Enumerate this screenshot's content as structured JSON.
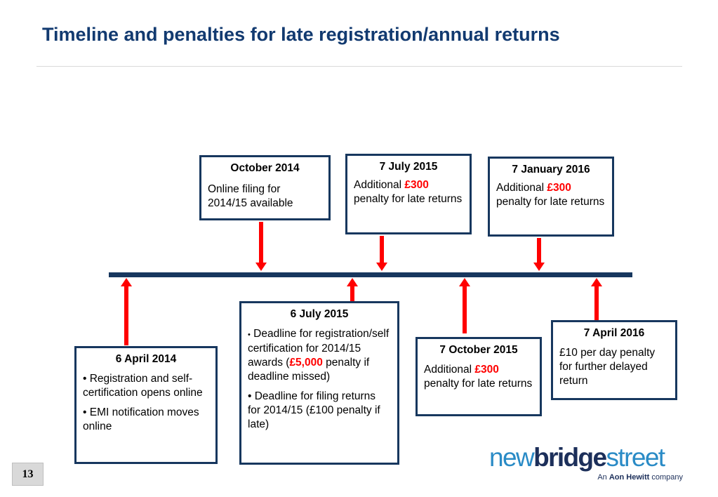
{
  "slide": {
    "title": "Timeline and penalties for late registration/annual returns",
    "page_number": "13"
  },
  "colors": {
    "title": "#123a70",
    "timeline": "#17375e",
    "arrow": "#ff0000",
    "penalty": "#ff0000"
  },
  "events_above": [
    {
      "date": "October 2014",
      "line1": "Online filing for 2014/15 available"
    },
    {
      "date": "7 July 2015",
      "pre": "Additional ",
      "amount": "£300",
      "post": " penalty for late returns"
    },
    {
      "date": "7 January 2016",
      "pre": "Additional ",
      "amount": "£300",
      "post": " penalty for late returns"
    }
  ],
  "events_below": [
    {
      "date": "6 April 2014",
      "bullet1": "• Registration and self-certification opens online",
      "bullet2": "• EMI notification moves online"
    },
    {
      "date": "6 July 2015",
      "b1_mark": "•",
      "b1_text": " Deadline for registration/self certification for 2014/15 awards (",
      "b1_amount": "£5,000",
      "b1_post": " penalty if deadline missed)",
      "bullet2": "• Deadline for filing returns for 2014/15 (£100 penalty if late)"
    },
    {
      "date": "7 October 2015",
      "pre": "Additional ",
      "amount": "£300",
      "post": " penalty for late returns"
    },
    {
      "date": "7 April 2016",
      "line1": "£10 per day penalty for further delayed return"
    }
  ],
  "logo": {
    "part1": "new",
    "part2": "bridge",
    "part3": "street",
    "tag_pre": "An ",
    "tag_bold": "Aon Hewitt",
    "tag_post": " company"
  }
}
